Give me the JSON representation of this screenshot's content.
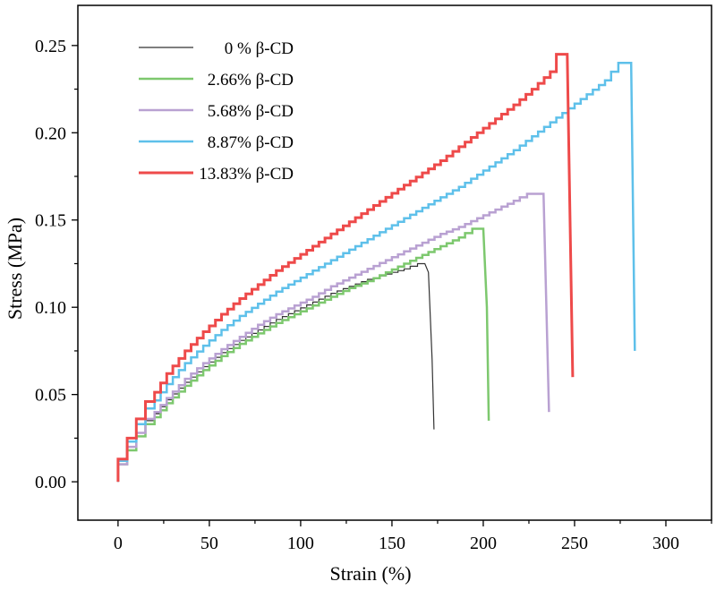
{
  "chart_data": {
    "type": "line",
    "title": "",
    "xlabel": "Strain (%)",
    "ylabel": "Stress (MPa)",
    "xlim": [
      -22,
      325
    ],
    "ylim": [
      -0.022,
      0.273
    ],
    "xticks": [
      0,
      50,
      100,
      150,
      200,
      250,
      300
    ],
    "xtick_labels": [
      "0",
      "50",
      "100",
      "150",
      "200",
      "250",
      "300"
    ],
    "yticks": [
      0.0,
      0.05,
      0.1,
      0.15,
      0.2,
      0.25
    ],
    "ytick_labels": [
      "0.00",
      "0.05",
      "0.10",
      "0.15",
      "0.20",
      "0.25"
    ],
    "grid": false,
    "legend_position": "top-left",
    "series": [
      {
        "name": "0  % β-CD",
        "color": "#333333",
        "width": 1.2,
        "x": [
          0,
          5,
          10,
          15,
          20,
          30,
          40,
          50,
          60,
          70,
          80,
          90,
          100,
          110,
          120,
          130,
          140,
          150,
          160,
          168,
          170,
          172,
          173
        ],
        "y": [
          0,
          0.01,
          0.02,
          0.028,
          0.035,
          0.047,
          0.057,
          0.066,
          0.074,
          0.081,
          0.087,
          0.093,
          0.098,
          0.103,
          0.108,
          0.112,
          0.116,
          0.119,
          0.122,
          0.125,
          0.12,
          0.07,
          0.03
        ]
      },
      {
        "name": "2.66% β-CD",
        "color": "#7dc86e",
        "width": 2.5,
        "x": [
          0,
          5,
          10,
          15,
          20,
          30,
          40,
          50,
          60,
          70,
          80,
          90,
          100,
          110,
          120,
          130,
          140,
          150,
          160,
          170,
          180,
          190,
          198,
          200,
          202,
          203
        ],
        "y": [
          0,
          0.01,
          0.018,
          0.026,
          0.033,
          0.045,
          0.055,
          0.064,
          0.072,
          0.079,
          0.085,
          0.091,
          0.096,
          0.101,
          0.106,
          0.111,
          0.115,
          0.12,
          0.125,
          0.13,
          0.135,
          0.14,
          0.145,
          0.145,
          0.1,
          0.035
        ]
      },
      {
        "name": "5.68% β-CD",
        "color": "#b9a1d2",
        "width": 2.5,
        "x": [
          0,
          5,
          10,
          15,
          20,
          30,
          40,
          50,
          60,
          70,
          80,
          90,
          100,
          110,
          120,
          130,
          140,
          150,
          160,
          170,
          180,
          190,
          200,
          210,
          220,
          228,
          233,
          236
        ],
        "y": [
          0,
          0.01,
          0.02,
          0.028,
          0.036,
          0.048,
          0.059,
          0.068,
          0.076,
          0.083,
          0.09,
          0.096,
          0.101,
          0.106,
          0.112,
          0.117,
          0.122,
          0.127,
          0.132,
          0.137,
          0.142,
          0.146,
          0.151,
          0.156,
          0.161,
          0.165,
          0.165,
          0.04
        ]
      },
      {
        "name": "8.87% β-CD",
        "color": "#5ec0ea",
        "width": 2.5,
        "x": [
          0,
          5,
          10,
          15,
          20,
          30,
          40,
          50,
          60,
          70,
          80,
          90,
          100,
          110,
          120,
          130,
          140,
          150,
          160,
          170,
          180,
          190,
          200,
          210,
          220,
          230,
          240,
          250,
          260,
          270,
          278,
          281,
          283
        ],
        "y": [
          0,
          0.012,
          0.023,
          0.033,
          0.042,
          0.056,
          0.068,
          0.078,
          0.087,
          0.095,
          0.102,
          0.109,
          0.115,
          0.121,
          0.127,
          0.133,
          0.139,
          0.145,
          0.151,
          0.157,
          0.163,
          0.169,
          0.176,
          0.183,
          0.19,
          0.198,
          0.206,
          0.214,
          0.222,
          0.23,
          0.24,
          0.24,
          0.075
        ]
      },
      {
        "name": "13.83% β-CD",
        "color": "#ee4a4a",
        "width": 3,
        "x": [
          0,
          5,
          10,
          15,
          20,
          30,
          40,
          50,
          60,
          70,
          80,
          90,
          100,
          110,
          120,
          130,
          140,
          150,
          160,
          170,
          180,
          190,
          200,
          210,
          220,
          230,
          240,
          244,
          246,
          249
        ],
        "y": [
          0,
          0.013,
          0.025,
          0.036,
          0.046,
          0.062,
          0.075,
          0.086,
          0.096,
          0.105,
          0.113,
          0.121,
          0.128,
          0.135,
          0.142,
          0.149,
          0.156,
          0.163,
          0.17,
          0.177,
          0.184,
          0.192,
          0.2,
          0.208,
          0.216,
          0.225,
          0.235,
          0.245,
          0.245,
          0.06
        ]
      }
    ]
  }
}
